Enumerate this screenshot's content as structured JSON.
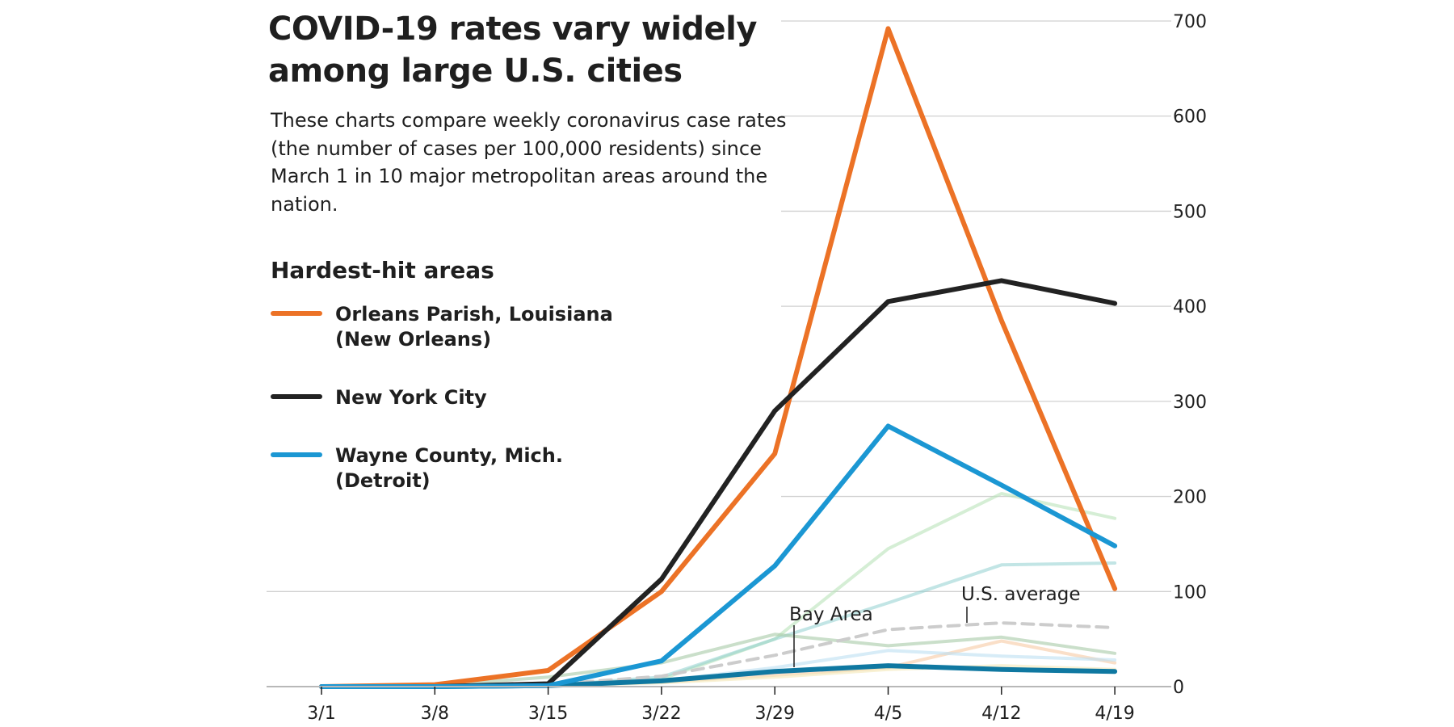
{
  "title": "COVID-19 rates vary widely among large U.S. cities",
  "subtitle": "These charts compare weekly coronavirus case rates (the number of cases per 100,000 residents) since March 1 in 10 major metropolitan areas around the nation.",
  "legend": {
    "title": "Hardest-hit areas",
    "items": [
      {
        "label": "Orleans Parish, Louisiana\n(New Orleans)",
        "color": "#ec7226"
      },
      {
        "label": "New York City",
        "color": "#222222"
      },
      {
        "label": "Wayne County, Mich.\n(Detroit)",
        "color": "#1b97d3"
      }
    ]
  },
  "annotations": {
    "bay_area": "Bay Area",
    "us_average": "U.S. average"
  },
  "chart_data": {
    "type": "line",
    "x": [
      "3/1",
      "3/8",
      "3/15",
      "3/22",
      "3/29",
      "4/5",
      "4/12",
      "4/19"
    ],
    "y_ticks": [
      0,
      100,
      200,
      300,
      400,
      500,
      600,
      700
    ],
    "ylim": [
      0,
      700
    ],
    "grid": true,
    "y_axis_position": "right",
    "series": [
      {
        "key": "faded-green-1",
        "color": "#b9e2b9",
        "opacity": 0.6,
        "dashed": false,
        "values": [
          0,
          0,
          1,
          8,
          50,
          145,
          203,
          177
        ]
      },
      {
        "key": "faded-teal",
        "color": "#8fd0cf",
        "opacity": 0.55,
        "dashed": false,
        "values": [
          0,
          0,
          1,
          10,
          50,
          88,
          128,
          130
        ]
      },
      {
        "key": "faded-green-2",
        "color": "#a6c9a6",
        "opacity": 0.6,
        "dashed": false,
        "values": [
          0,
          1,
          10,
          25,
          55,
          43,
          52,
          35
        ]
      },
      {
        "key": "faded-peach",
        "color": "#f6c9a3",
        "opacity": 0.6,
        "dashed": false,
        "values": [
          0,
          0,
          1,
          5,
          12,
          20,
          48,
          25
        ]
      },
      {
        "key": "faded-lightblue",
        "color": "#bcdff2",
        "opacity": 0.6,
        "dashed": false,
        "values": [
          0,
          0,
          1,
          6,
          20,
          38,
          32,
          28
        ]
      },
      {
        "key": "faded-yellow",
        "color": "#f4e7b8",
        "opacity": 0.6,
        "dashed": false,
        "values": [
          0,
          0,
          1,
          4,
          10,
          18,
          22,
          18
        ]
      },
      {
        "key": "us-average",
        "name": "U.S. average",
        "color": "#cccccc",
        "opacity": 1,
        "dashed": true,
        "values": [
          0,
          0,
          2,
          11,
          33,
          60,
          67,
          62
        ]
      },
      {
        "key": "bay-area",
        "name": "Bay Area",
        "color": "#0f78a1",
        "opacity": 1,
        "dashed": false,
        "values": [
          0,
          0,
          1,
          6,
          16,
          22,
          18,
          16
        ]
      },
      {
        "key": "new-orleans",
        "name": "Orleans Parish, Louisiana (New Orleans)",
        "color": "#ec7226",
        "opacity": 1,
        "dashed": false,
        "values": [
          0,
          2,
          17,
          100,
          245,
          692,
          385,
          103
        ]
      },
      {
        "key": "new-york-city",
        "name": "New York City",
        "color": "#222222",
        "opacity": 1,
        "dashed": false,
        "values": [
          0,
          0,
          3,
          113,
          290,
          405,
          427,
          403
        ]
      },
      {
        "key": "wayne-county",
        "name": "Wayne County, Mich. (Detroit)",
        "color": "#1b97d3",
        "opacity": 1,
        "dashed": false,
        "values": [
          0,
          0,
          1,
          27,
          127,
          274,
          212,
          148
        ]
      }
    ]
  }
}
